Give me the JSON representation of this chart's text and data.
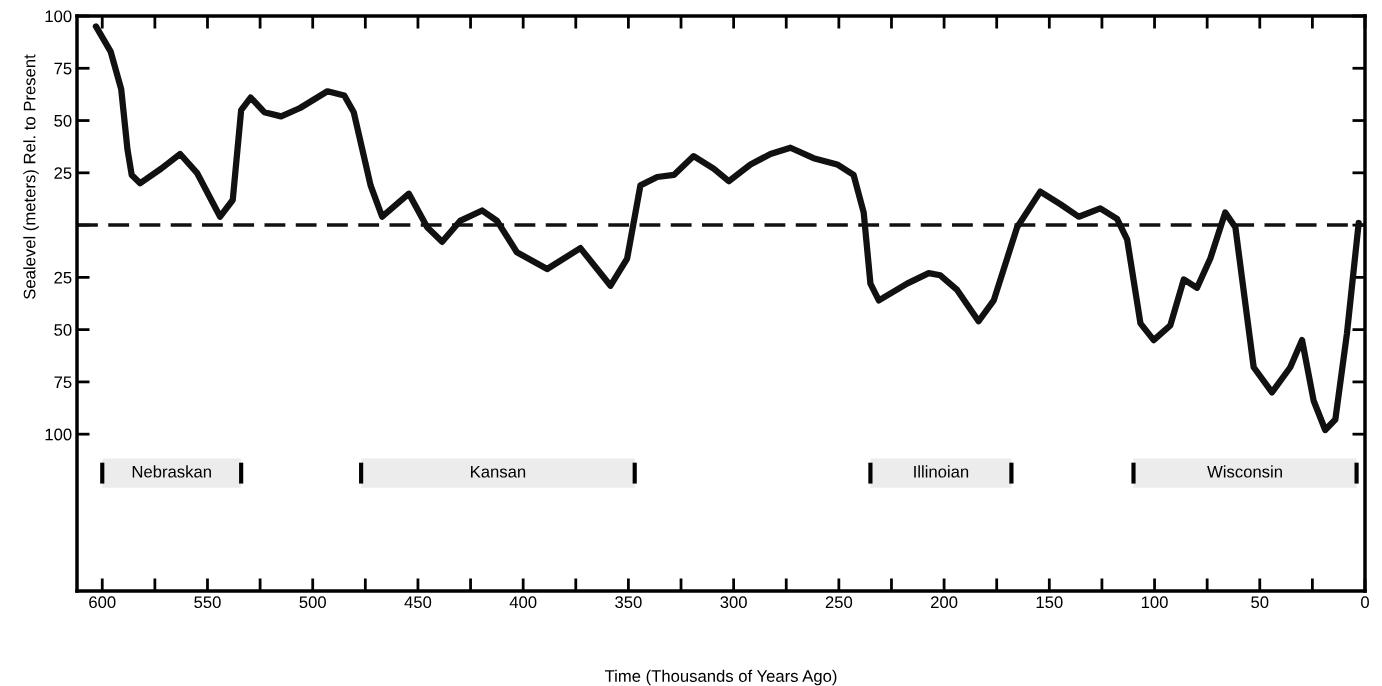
{
  "chart_data": {
    "type": "line",
    "xlabel": "Time (Thousands of Years Ago)",
    "ylabel": "Sealevel (meters) Rel. to Present",
    "series": [
      {
        "color": "#111111",
        "x": [
          603,
          596,
          591,
          588,
          586,
          582,
          572,
          563,
          555,
          544,
          538,
          534,
          529.5,
          523,
          515,
          506,
          493,
          485,
          480.5,
          472.5,
          467,
          454.3,
          445.6,
          438.5,
          430,
          419.5,
          412.4,
          403,
          388.6,
          372.8,
          358.5,
          350.6,
          344.3,
          336.3,
          328.4,
          319,
          309.5,
          302.3,
          292,
          282.5,
          273,
          262,
          250.8,
          243,
          238.2,
          235,
          231,
          217.6,
          207.3,
          201.8,
          193.8,
          183.6,
          176.4,
          165.3,
          154.3,
          144.8,
          136,
          125.8,
          117.8,
          113,
          106.7,
          100.4,
          92.5,
          86.1,
          79.8,
          73.5,
          66.4,
          61.6,
          52.9,
          44.2,
          35.5,
          29.9,
          24.4,
          18.9,
          14.1,
          8.6,
          3
        ],
        "values": [
          95,
          83,
          65,
          36,
          24,
          20,
          27,
          34,
          25,
          4,
          12,
          55,
          61,
          54,
          52,
          56,
          64,
          62,
          54,
          19,
          4,
          15,
          -1,
          -8,
          2,
          7,
          2,
          -13,
          -21,
          -11,
          -29,
          -16,
          19,
          23,
          24,
          33,
          27,
          21,
          29,
          34,
          37,
          32,
          29,
          24,
          6,
          -28,
          -36,
          -28,
          -23,
          -24,
          -31,
          -46,
          -36,
          -1,
          16,
          10,
          4,
          8,
          3,
          -7,
          -47,
          -55,
          -48,
          -26,
          -30,
          -16,
          6,
          -1,
          -68,
          -80,
          -68,
          -55,
          -84,
          -98,
          -93,
          -52,
          1
        ]
      }
    ],
    "xlim": [
      612,
      0
    ],
    "xticks": [
      600,
      {
        "value": 575,
        "label": null
      },
      550,
      {
        "value": 525,
        "label": null
      },
      500,
      {
        "value": 475,
        "label": null
      },
      450,
      {
        "value": 425,
        "label": null
      },
      400,
      {
        "value": 375,
        "label": null
      },
      350,
      {
        "value": 325,
        "label": null
      },
      300,
      {
        "value": 275,
        "label": null
      },
      250,
      {
        "value": 225,
        "label": null
      },
      200,
      {
        "value": 175,
        "label": null
      },
      150,
      {
        "value": 125,
        "label": null
      },
      100,
      {
        "value": 75,
        "label": null
      },
      50,
      {
        "value": 25,
        "label": null
      },
      0
    ],
    "ylim": [
      -175,
      100
    ],
    "yticks": [
      {
        "value": 100,
        "label": "100"
      },
      75,
      50,
      25,
      {
        "value": 0,
        "label": null
      },
      {
        "value": -25,
        "label": "25"
      },
      {
        "value": -50,
        "label": "50"
      },
      {
        "value": -75,
        "label": "75"
      },
      {
        "value": -100,
        "label": "100"
      }
    ],
    "ref_lines": [
      {
        "axis": "y",
        "value": 0,
        "color": "#111111",
        "line_style": "dashed"
      }
    ],
    "bands": [
      {
        "axis": "x",
        "from": 600,
        "to": 534,
        "label": "Nebraskan",
        "color": "#ececec"
      },
      {
        "axis": "x",
        "from": 477,
        "to": 347,
        "label": "Kansan",
        "color": "#ececec"
      },
      {
        "axis": "x",
        "from": 235,
        "to": 168,
        "label": "Illinoian",
        "color": "#ececec"
      },
      {
        "axis": "x",
        "from": 110,
        "to": 4,
        "label": "Wisconsin",
        "color": "#ececec"
      }
    ],
    "grid": false,
    "marker": "none",
    "line_style": "solid"
  }
}
